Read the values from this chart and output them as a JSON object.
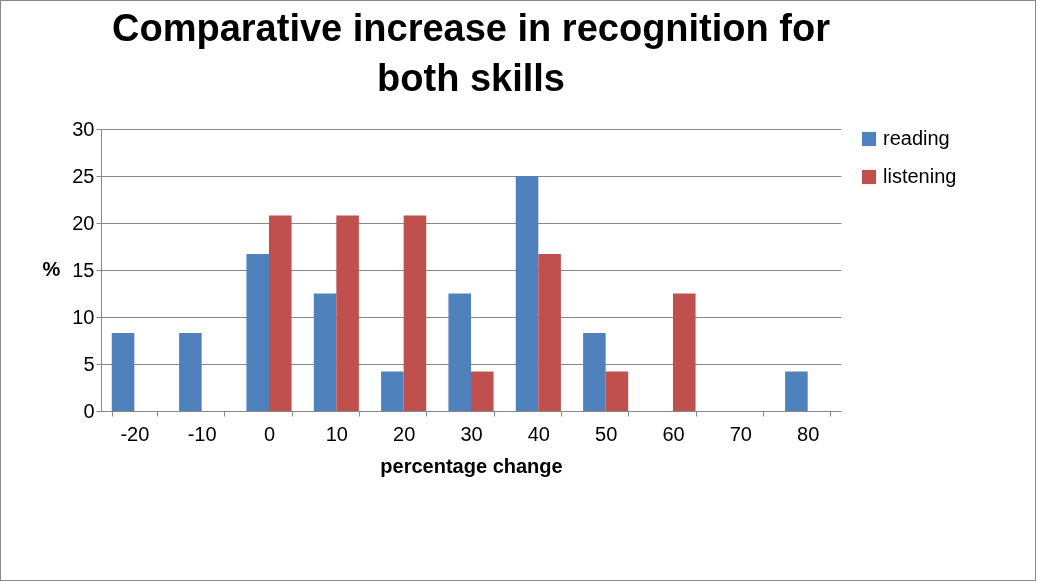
{
  "chart_data": {
    "type": "bar",
    "title": "Comparative increase in recognition for both skills",
    "xlabel": "percentage change",
    "ylabel": "%",
    "categories": [
      "-20",
      "-10",
      "0",
      "10",
      "20",
      "30",
      "40",
      "50",
      "60",
      "70",
      "80"
    ],
    "series": [
      {
        "name": "reading",
        "color": "#4f81bd",
        "values": [
          8.3,
          8.3,
          16.7,
          12.5,
          4.2,
          12.5,
          25,
          8.3,
          0,
          0,
          4.2
        ]
      },
      {
        "name": "listening",
        "color": "#c0504d",
        "values": [
          0,
          0,
          20.8,
          20.8,
          20.8,
          4.2,
          16.7,
          4.2,
          12.5,
          0,
          0
        ]
      }
    ],
    "ylim": [
      0,
      30
    ],
    "yticks": [
      0,
      5,
      10,
      15,
      20,
      25,
      30
    ],
    "grid": "y",
    "legend": "right"
  }
}
